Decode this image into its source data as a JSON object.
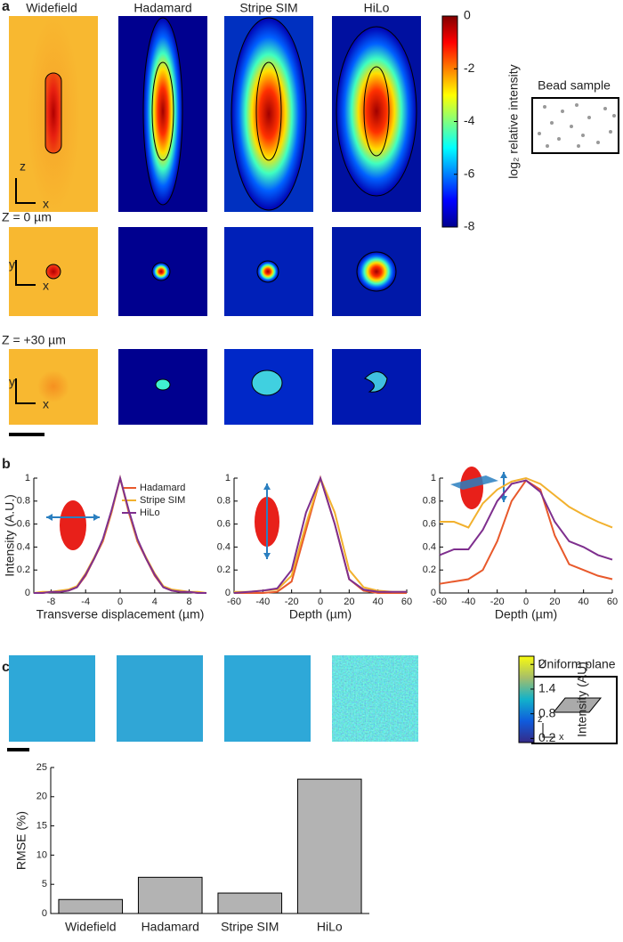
{
  "figure_a": {
    "label": "a",
    "columns": [
      "Widefield",
      "Hadamard",
      "Stripe SIM",
      "HiLo"
    ],
    "rows": [
      "Z = 0 µm",
      "Z = +30 µm"
    ],
    "axes": [
      [
        "z",
        "x"
      ],
      [
        "y",
        "x"
      ],
      [
        "y",
        "x"
      ]
    ],
    "inset": "Bead sample"
  },
  "figure_b": {
    "label": "b"
  },
  "figure_c": {
    "label": "c",
    "inset": "Uniform plane",
    "inset_axes": [
      "z",
      "x"
    ]
  },
  "chart_data": [
    {
      "type": "line",
      "ylabel": "Intensity (A.U.)",
      "xlabel": "Transverse displacement (µm)",
      "legend": "top-right",
      "x": [
        -10,
        -9,
        -8,
        -7,
        -6,
        -5,
        -4,
        -3,
        -2,
        -1,
        0,
        1,
        2,
        3,
        4,
        5,
        6,
        7,
        8,
        9,
        10
      ],
      "series": [
        {
          "name": "Hadamard",
          "color": "#e8592b",
          "values": [
            0,
            0,
            0.01,
            0.01,
            0.02,
            0.05,
            0.15,
            0.3,
            0.45,
            0.7,
            1,
            0.7,
            0.45,
            0.3,
            0.15,
            0.05,
            0.02,
            0.01,
            0.01,
            0,
            0
          ]
        },
        {
          "name": "Stripe SIM",
          "color": "#f2b12e",
          "values": [
            0,
            0.01,
            0.01,
            0.02,
            0.03,
            0.06,
            0.17,
            0.31,
            0.46,
            0.71,
            1,
            0.71,
            0.46,
            0.31,
            0.17,
            0.06,
            0.03,
            0.02,
            0.01,
            0.01,
            0
          ]
        },
        {
          "name": "HiLo",
          "color": "#7e2f8e",
          "values": [
            0,
            0,
            0.01,
            0.01,
            0.02,
            0.05,
            0.16,
            0.3,
            0.47,
            0.72,
            1,
            0.72,
            0.47,
            0.3,
            0.16,
            0.05,
            0.02,
            0.01,
            0.01,
            0,
            0
          ]
        }
      ],
      "xlim": [
        -10,
        10
      ],
      "xticks": [
        -8,
        -4,
        0,
        4,
        8
      ],
      "ylim": [
        0,
        1
      ],
      "yticks": [
        0,
        0.2,
        0.4,
        0.6,
        0.8,
        1
      ]
    },
    {
      "type": "line",
      "xlabel": "Depth (µm)",
      "x": [
        -60,
        -50,
        -40,
        -30,
        -20,
        -10,
        0,
        10,
        20,
        30,
        40,
        50,
        60
      ],
      "series": [
        {
          "color": "#e8592b",
          "values": [
            0,
            0,
            0,
            0.01,
            0.1,
            0.55,
            1,
            0.6,
            0.12,
            0.02,
            0,
            0,
            0
          ]
        },
        {
          "color": "#f2b12e",
          "values": [
            0.01,
            0.01,
            0.02,
            0.03,
            0.15,
            0.6,
            1,
            0.7,
            0.2,
            0.05,
            0.02,
            0.01,
            0.01
          ]
        },
        {
          "color": "#7e2f8e",
          "values": [
            0,
            0.01,
            0.02,
            0.04,
            0.2,
            0.7,
            1,
            0.6,
            0.12,
            0.03,
            0.01,
            0.01,
            0.01
          ]
        }
      ],
      "xlim": [
        -60,
        60
      ],
      "xticks": [
        -60,
        -40,
        -20,
        0,
        20,
        40,
        60
      ],
      "ylim": [
        0,
        1
      ],
      "yticks": [
        0,
        0.2,
        0.4,
        0.6,
        0.8,
        1
      ]
    },
    {
      "type": "line",
      "xlabel": "Depth (µm)",
      "x": [
        -60,
        -50,
        -40,
        -30,
        -20,
        -10,
        0,
        10,
        20,
        30,
        40,
        50,
        60
      ],
      "series": [
        {
          "color": "#e8592b",
          "values": [
            0.08,
            0.1,
            0.12,
            0.2,
            0.45,
            0.8,
            0.98,
            0.9,
            0.5,
            0.25,
            0.2,
            0.15,
            0.12
          ]
        },
        {
          "color": "#f2b12e",
          "values": [
            0.62,
            0.62,
            0.57,
            0.78,
            0.9,
            0.97,
            1,
            0.95,
            0.85,
            0.75,
            0.68,
            0.62,
            0.57
          ]
        },
        {
          "color": "#7e2f8e",
          "values": [
            0.33,
            0.38,
            0.38,
            0.55,
            0.8,
            0.95,
            0.98,
            0.88,
            0.62,
            0.45,
            0.4,
            0.33,
            0.29
          ]
        }
      ],
      "xlim": [
        -60,
        60
      ],
      "xticks": [
        -60,
        -40,
        -20,
        0,
        20,
        40,
        60
      ],
      "ylim": [
        0,
        1
      ],
      "yticks": [
        0,
        0.2,
        0.4,
        0.6,
        0.8,
        1
      ]
    },
    {
      "type": "bar",
      "ylabel": "RMSE (%)",
      "categories": [
        "Widefield",
        "Hadamard",
        "Stripe SIM",
        "HiLo"
      ],
      "values": [
        2.4,
        6.2,
        3.5,
        23
      ],
      "color": "#b3b3b3",
      "ylim": [
        0,
        25
      ],
      "yticks": [
        0,
        5,
        10,
        15,
        20,
        25
      ]
    },
    {
      "type": "colorbar",
      "label": "log₂ relative intensity",
      "colormap": "jet",
      "ylim": [
        -8,
        0
      ],
      "yticks": [
        0,
        -2,
        -4,
        -6,
        -8
      ]
    },
    {
      "type": "colorbar",
      "label": "Intensity (AU)",
      "colormap": "parula",
      "ylim": [
        0.1,
        2.2
      ],
      "yticks": [
        2,
        1.4,
        0.8,
        0.2
      ]
    }
  ]
}
